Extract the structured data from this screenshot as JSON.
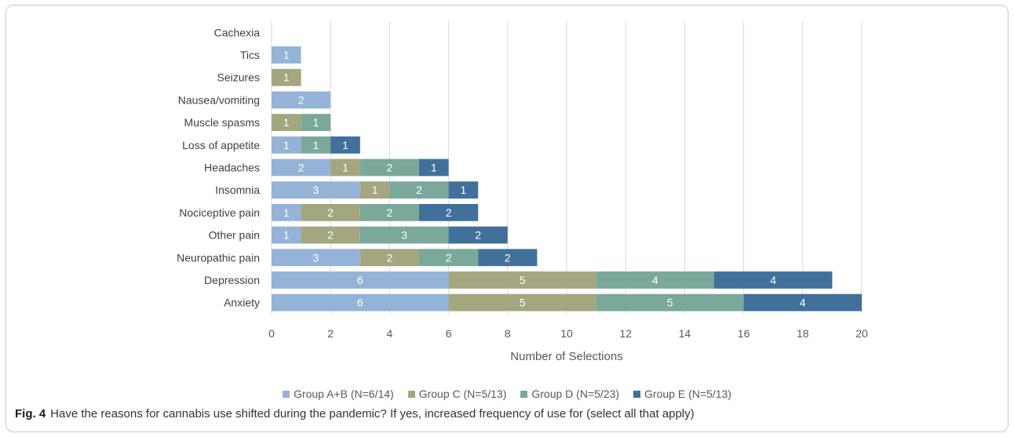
{
  "chart_data": {
    "type": "bar",
    "orientation": "horizontal",
    "stacked": true,
    "categories": [
      "Anxiety",
      "Depression",
      "Neuropathic pain",
      "Other pain",
      "Nociceptive pain",
      "Insomnia",
      "Headaches",
      "Loss of appetite",
      "Muscle spasms",
      "Nausea/vomiting",
      "Seizures",
      "Tics",
      "Cachexia"
    ],
    "series": [
      {
        "name": "Group A+B (N=6/14)",
        "color": "#95b3d7",
        "values": [
          6,
          6,
          3,
          1,
          1,
          3,
          2,
          1,
          0,
          2,
          0,
          1,
          0
        ]
      },
      {
        "name": "Group C (N=5/13)",
        "color": "#a3a67e",
        "values": [
          5,
          5,
          2,
          2,
          2,
          1,
          1,
          0,
          1,
          0,
          1,
          0,
          0
        ]
      },
      {
        "name": "Group D (N=5/23)",
        "color": "#7aa89b",
        "values": [
          5,
          4,
          2,
          3,
          2,
          2,
          2,
          1,
          1,
          0,
          0,
          0,
          0
        ]
      },
      {
        "name": "Group E (N=5/13)",
        "color": "#41709a",
        "values": [
          4,
          4,
          2,
          2,
          2,
          1,
          1,
          1,
          0,
          0,
          0,
          0,
          0
        ]
      }
    ],
    "xlabel": "Number of Selections",
    "ylabel": "",
    "xlim": [
      0,
      20
    ],
    "xticks": [
      0,
      2,
      4,
      6,
      8,
      10,
      12,
      14,
      16,
      18,
      20
    ],
    "grid": "vertical",
    "legend_position": "bottom",
    "data_labels": true
  },
  "caption": {
    "label": "Fig. 4",
    "text": "Have the reasons for cannabis use shifted during the pandemic? If yes, increased frequency of use for (select all that apply)"
  }
}
